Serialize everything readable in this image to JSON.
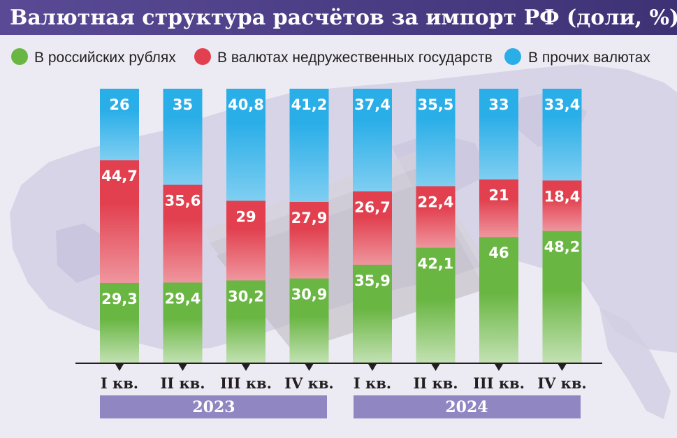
{
  "chart_data": {
    "type": "bar",
    "stacked": true,
    "percent": true,
    "title": "Валютная структура расчётов за импорт РФ (доли, %)",
    "categories": [
      "I кв.",
      "II кв.",
      "III кв.",
      "IV кв.",
      "I кв.",
      "II кв.",
      "III кв.",
      "IV кв."
    ],
    "groups": [
      {
        "label": "2023",
        "categories": [
          0,
          1,
          2,
          3
        ]
      },
      {
        "label": "2024",
        "categories": [
          4,
          5,
          6,
          7
        ]
      }
    ],
    "series": [
      {
        "name": "В российских рублях",
        "color": "#6ab643",
        "values": [
          "29,3",
          "29,4",
          "30,2",
          "30,9",
          "35,9",
          "42,1",
          "46",
          "48,2"
        ]
      },
      {
        "name": "В валютах недружественных государств",
        "color": "#e2404f",
        "values": [
          "44,7",
          "35,6",
          "29",
          "27,9",
          "26,7",
          "22,4",
          "21",
          "18,4"
        ]
      },
      {
        "name": "В прочих валютах",
        "color": "#2aaee8",
        "values": [
          "26",
          "35",
          "40,8",
          "41,2",
          "37,4",
          "35,5",
          "33",
          "33,4"
        ]
      }
    ],
    "ylim": [
      0,
      100
    ],
    "legend_position": "top",
    "grid": false,
    "colors": {
      "title_bar": "#4d3f86",
      "year_band": "#8f86c2",
      "background": "#ecebf3",
      "background_map": "#cfcbe2",
      "axis": "#231f20"
    }
  }
}
